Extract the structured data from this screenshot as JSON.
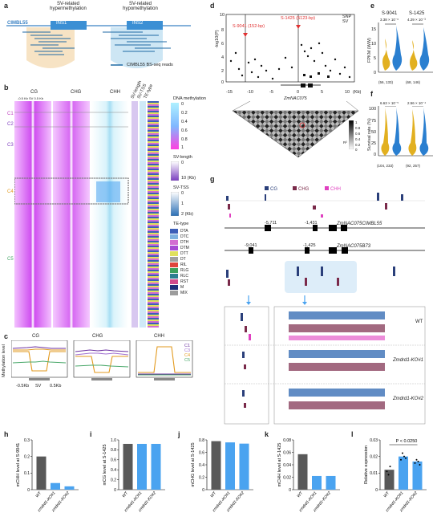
{
  "panels": {
    "a": {
      "label": "a",
      "hyper_label": "SV-related hypermethylation",
      "hypo_label": "SV-related hypomethylation",
      "cimbl": "CIMBL55",
      "ins1": "INS1",
      "ins2": "INS2",
      "legend": "CIMBL55 BS-seq reads"
    },
    "b": {
      "label": "b",
      "contexts": [
        "CG",
        "CHG",
        "CHH"
      ],
      "axis": "-0.5 Kb  SV  0.5 Kb",
      "col_labels": [
        "SV-length",
        "SV-TSS",
        "TE-type"
      ],
      "clusters": [
        "C1",
        "C2",
        "C3",
        "C4",
        "C5"
      ],
      "dna_meth_title": "DNA methylation",
      "dna_meth_ticks": [
        "0",
        "0.2",
        "0.4",
        "0.6",
        "0.8",
        "1"
      ],
      "svlen_title": "SV-length",
      "svlen_ticks": [
        "0",
        "10 (Kb)"
      ],
      "svtss_title": "SV-TSS",
      "svtss_ticks": [
        "0",
        "1",
        "2 (Kb)"
      ],
      "te_title": "TE-type",
      "te_types": [
        {
          "name": "DTA",
          "color": "#3c5fb8"
        },
        {
          "name": "DTC",
          "color": "#7fb2e0"
        },
        {
          "name": "DTH",
          "color": "#d36dd1"
        },
        {
          "name": "DTM",
          "color": "#a74ad3"
        },
        {
          "name": "DTT",
          "color": "#e0e05e"
        },
        {
          "name": "DT",
          "color": "#a0a0a0"
        },
        {
          "name": "RIL",
          "color": "#e0443c"
        },
        {
          "name": "RLG",
          "color": "#3ea05c"
        },
        {
          "name": "RLC",
          "color": "#2e7f90"
        },
        {
          "name": "RST",
          "color": "#d24b8c"
        },
        {
          "name": "M",
          "color": "#1f2f7a"
        },
        {
          "name": "MIX",
          "color": "#9c9c9c"
        }
      ]
    },
    "c": {
      "label": "c",
      "titles": [
        "CG",
        "CHG",
        "CHH"
      ],
      "ylabel": "Methylation level",
      "legend": [
        "C1",
        "C3",
        "C4",
        "C5"
      ],
      "xlabels": [
        "-0.5Kb",
        "SV",
        "0.5Kb"
      ]
    },
    "d": {
      "label": "d",
      "ylabel": "-log10(P)",
      "xlabel": "ZmNAC075",
      "xunit": "(Kb)",
      "legend": [
        "SNP",
        "SV"
      ],
      "s9041": "S-9041 (152-bp)",
      "s1425": "S-1425 (5123-bp)",
      "xticks": [
        "-15",
        "-10",
        "-5",
        "0",
        "5",
        "10"
      ],
      "yticks": [
        "0",
        "2",
        "4",
        "6",
        "8",
        "10"
      ],
      "ld_title": "R²",
      "ld_ticks": [
        "1",
        "0.8",
        "0.6",
        "0.4",
        "0.2",
        "0"
      ]
    },
    "e": {
      "label": "e",
      "titles": [
        "S-9041",
        "S-1425"
      ],
      "pvals": [
        "3.38 × 10⁻⁶",
        "4.29 × 10⁻³"
      ],
      "ylabel": "FPKM (WW)",
      "yticks": [
        "0",
        "5",
        "10",
        "15"
      ],
      "ns": [
        "(56, 133)",
        "(68, 146)"
      ]
    },
    "f": {
      "label": "f",
      "pvals": [
        "6.63 × 10⁻⁵",
        "2.56 × 10⁻⁴"
      ],
      "ylabel": "Survival rate (%)",
      "yticks": [
        "0",
        "25",
        "50",
        "75",
        "100"
      ],
      "ns": [
        "(104, 233)",
        "(92, 257)"
      ]
    },
    "g": {
      "label": "g",
      "legend": [
        "CG",
        "CHG",
        "CHH"
      ],
      "gene1": "ZmNAC075CIMBL55",
      "gene2": "ZmNAC075B73",
      "pos1": [
        "-5,711",
        "-1,431"
      ],
      "pos2": [
        "-9,041",
        "-1,425"
      ],
      "samples": [
        "WT",
        "Zmdrd1-KO#1",
        "Zmdrd1-KO#2"
      ]
    },
    "h": {
      "label": "h",
      "ylabel": "mCHH level at S-9041",
      "yticks": [
        "0",
        "0.1",
        "0.2",
        "0.3"
      ],
      "categories": [
        "WT",
        "zmdrd1-KO#1",
        "zmdrd1-KO#2"
      ],
      "values": [
        0.2,
        0.04,
        0.02
      ]
    },
    "i": {
      "label": "i",
      "ylabel": "mCG level at S-1425",
      "yticks": [
        "0",
        "0.2",
        "0.4",
        "0.6",
        "0.8",
        "1.0"
      ],
      "categories": [
        "WT",
        "zmdrd1-KO#1",
        "zmdrd1-KO#2"
      ],
      "values": [
        0.92,
        0.92,
        0.92
      ]
    },
    "j": {
      "label": "j",
      "ylabel": "mCHG level at S-1425",
      "yticks": [
        "0",
        "0.2",
        "0.4",
        "0.6",
        "0.8"
      ],
      "categories": [
        "WT",
        "zmdrd1-KO#1",
        "zmdrd1-KO#2"
      ],
      "values": [
        0.78,
        0.76,
        0.74
      ]
    },
    "k": {
      "label": "k",
      "ylabel": "mCHH level at S-1425",
      "yticks": [
        "0",
        "0.02",
        "0.04",
        "0.06",
        "0.08"
      ],
      "categories": [
        "WT",
        "zmdrd1-KO#1",
        "zmdrd1-KO#2"
      ],
      "values": [
        0.057,
        0.022,
        0.022
      ]
    },
    "l": {
      "label": "l",
      "ylabel": "Relative expression",
      "yticks": [
        "0",
        "0.01",
        "0.02",
        "0.03"
      ],
      "pval": "P < 0.0250",
      "categories": [
        "WT",
        "zmdrd1-KO#1",
        "zmdrd1-KO#2"
      ],
      "values": [
        0.012,
        0.02,
        0.017
      ]
    }
  },
  "colors": {
    "gray": "#595959",
    "blue": "#4aa3f0",
    "purple": "#6b2fa0",
    "orange": "#e29a1f",
    "green": "#4aa86a",
    "magenta": "#e040c0"
  },
  "chart_data": [
    {
      "type": "bar",
      "panel": "h",
      "categories": [
        "WT",
        "zmdrd1-KO#1",
        "zmdrd1-KO#2"
      ],
      "values": [
        0.2,
        0.04,
        0.02
      ],
      "ylabel": "mCHH level at S-9041",
      "ylim": [
        0,
        0.3
      ]
    },
    {
      "type": "bar",
      "panel": "i",
      "categories": [
        "WT",
        "zmdrd1-KO#1",
        "zmdrd1-KO#2"
      ],
      "values": [
        0.92,
        0.92,
        0.92
      ],
      "ylabel": "mCG level at S-1425",
      "ylim": [
        0,
        1.0
      ]
    },
    {
      "type": "bar",
      "panel": "j",
      "categories": [
        "WT",
        "zmdrd1-KO#1",
        "zmdrd1-KO#2"
      ],
      "values": [
        0.78,
        0.76,
        0.74
      ],
      "ylabel": "mCHG level at S-1425",
      "ylim": [
        0,
        0.8
      ]
    },
    {
      "type": "bar",
      "panel": "k",
      "categories": [
        "WT",
        "zmdrd1-KO#1",
        "zmdrd1-KO#2"
      ],
      "values": [
        0.057,
        0.022,
        0.022
      ],
      "ylabel": "mCHH level at S-1425",
      "ylim": [
        0,
        0.08
      ]
    },
    {
      "type": "bar",
      "panel": "l",
      "categories": [
        "WT",
        "zmdrd1-KO#1",
        "zmdrd1-KO#2"
      ],
      "values": [
        0.012,
        0.02,
        0.017
      ],
      "ylabel": "Relative expression",
      "ylim": [
        0,
        0.03
      ]
    }
  ]
}
